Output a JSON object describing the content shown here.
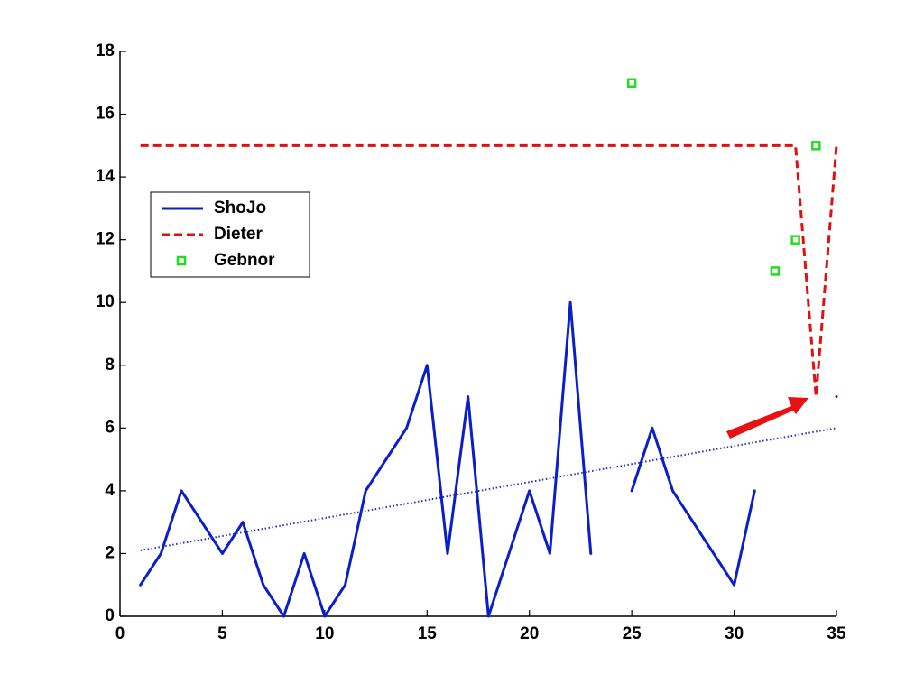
{
  "chart_data": {
    "type": "line",
    "xlim": [
      0,
      35
    ],
    "ylim": [
      0,
      18
    ],
    "xticks": [
      0,
      5,
      10,
      15,
      20,
      25,
      30,
      35
    ],
    "yticks": [
      0,
      2,
      4,
      6,
      8,
      10,
      12,
      14,
      16,
      18
    ],
    "legend": "upper-left",
    "series": [
      {
        "name": "ShoJo",
        "color": "#0a1fc8",
        "style": "solid",
        "x": [
          1,
          2,
          3,
          4,
          5,
          6,
          7,
          8,
          9,
          10,
          11,
          12,
          13,
          14,
          15,
          16,
          17,
          18,
          19,
          20,
          21,
          22,
          23,
          24,
          25,
          26,
          27,
          28,
          29,
          30,
          31,
          32,
          33,
          34,
          35
        ],
        "values": [
          1,
          2,
          4,
          3,
          2,
          3,
          1,
          0,
          2,
          0,
          1,
          4,
          5,
          6,
          8,
          2,
          7,
          0,
          2,
          4,
          2,
          10,
          2,
          null,
          4,
          6,
          4,
          3,
          2,
          1,
          4,
          null,
          null,
          null,
          7
        ]
      },
      {
        "name": "Dieter",
        "color": "#e01010",
        "style": "dashed",
        "x": [
          1,
          33,
          34,
          35
        ],
        "values": [
          15,
          15,
          7,
          15
        ]
      },
      {
        "name": "Gebnor",
        "color": "#22dd22",
        "style": "markers",
        "x": [
          25,
          32,
          33,
          34
        ],
        "values": [
          17,
          11,
          12,
          15
        ]
      },
      {
        "color": "#2030c0",
        "style": "dotted",
        "x": [
          1,
          35
        ],
        "values": [
          2.1,
          6.0
        ]
      }
    ]
  }
}
